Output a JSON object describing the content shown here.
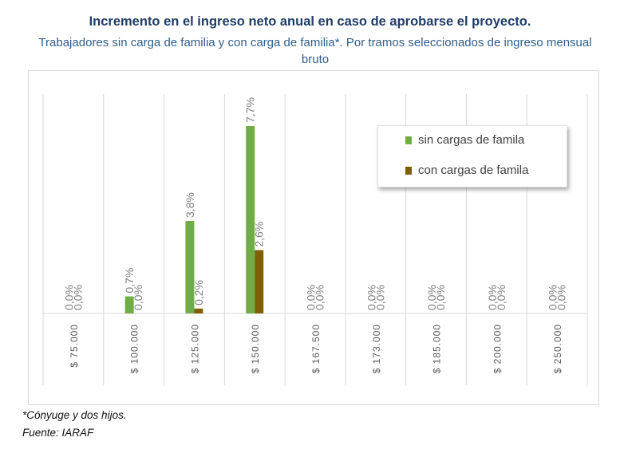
{
  "title": "Incremento en el ingreso neto anual en caso de aprobarse el proyecto.",
  "subtitle": "Trabajadores sin carga de familia y con carga de familia*. Por tramos seleccionados de ingreso mensual bruto",
  "footnote": "*Cónyuge y dos hijos.",
  "source": "Fuente: IARAF",
  "colors": {
    "series_sin": "#70ad47",
    "series_con": "#7f6000",
    "grid": "#d9d9d9",
    "label": "#7f7f7f"
  },
  "chart_data": {
    "type": "bar",
    "categories": [
      "$ 75.000",
      "$ 100.000",
      "$ 125.000",
      "$ 150.000",
      "$ 167.500",
      "$ 173.000",
      "$ 185.000",
      "$ 200.000",
      "$ 250.000"
    ],
    "series": [
      {
        "name": "sin cargas de famila",
        "values": [
          0.0,
          0.7,
          3.8,
          7.7,
          0.0,
          0.0,
          0.0,
          0.0,
          0.0
        ],
        "labels": [
          "0,0%",
          "0,7%",
          "3,8%",
          "7,7%",
          "0,0%",
          "0,0%",
          "0,0%",
          "0,0%",
          "0,0%"
        ]
      },
      {
        "name": "con cargas de famila",
        "values": [
          0.0,
          0.0,
          0.2,
          2.6,
          0.0,
          0.0,
          0.0,
          0.0,
          0.0
        ],
        "labels": [
          "0,0%",
          "0,0%",
          "0,2%",
          "2,6%",
          "0,0%",
          "0,0%",
          "0,0%",
          "0,0%",
          "0,0%"
        ]
      }
    ],
    "ylim": [
      0,
      7.7
    ],
    "legend_position": "top-right",
    "grid": "vertical"
  }
}
